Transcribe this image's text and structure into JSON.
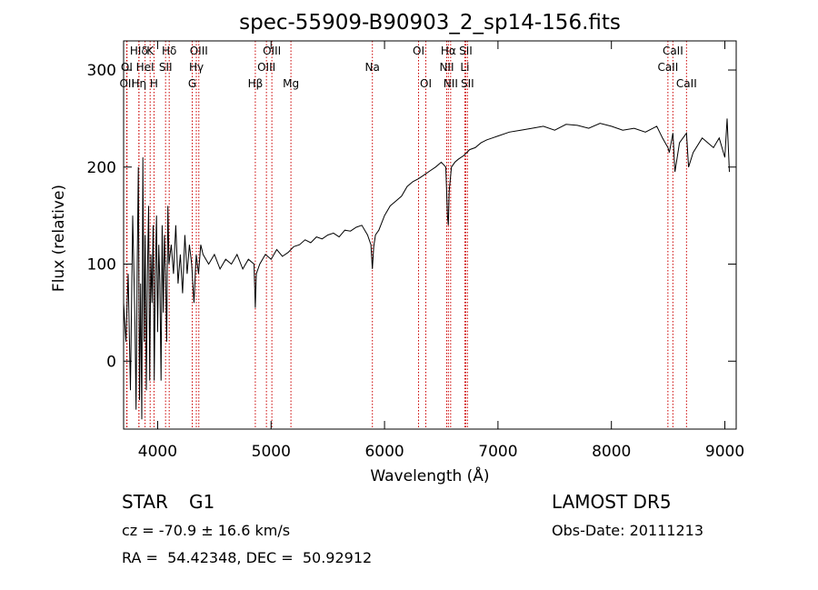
{
  "chart_data": {
    "type": "line",
    "title": "spec-55909-B90903_2_sp14-156.fits",
    "xlabel": "Wavelength (Å)",
    "ylabel": "Flux (relative)",
    "xlim": [
      3700,
      9100
    ],
    "ylim": [
      -70,
      330
    ],
    "x_ticks": [
      4000,
      5000,
      6000,
      7000,
      8000,
      9000
    ],
    "y_ticks": [
      0,
      100,
      200,
      300
    ],
    "grid": false,
    "series": [
      {
        "color": "#000000",
        "x": [
          3700,
          3720,
          3740,
          3760,
          3780,
          3800,
          3810,
          3820,
          3830,
          3840,
          3850,
          3860,
          3870,
          3880,
          3890,
          3900,
          3910,
          3920,
          3930,
          3940,
          3950,
          3960,
          3970,
          3980,
          3990,
          4000,
          4010,
          4020,
          4030,
          4040,
          4050,
          4060,
          4070,
          4080,
          4090,
          4100,
          4120,
          4140,
          4160,
          4180,
          4200,
          4220,
          4240,
          4260,
          4280,
          4300,
          4320,
          4340,
          4360,
          4380,
          4400,
          4450,
          4500,
          4550,
          4600,
          4650,
          4700,
          4750,
          4800,
          4850,
          4861,
          4870,
          4900,
          4950,
          5000,
          5050,
          5100,
          5150,
          5200,
          5250,
          5300,
          5350,
          5400,
          5450,
          5500,
          5550,
          5600,
          5650,
          5700,
          5750,
          5800,
          5850,
          5880,
          5893,
          5905,
          5920,
          5950,
          6000,
          6050,
          6100,
          6150,
          6200,
          6250,
          6300,
          6350,
          6400,
          6450,
          6500,
          6540,
          6555,
          6563,
          6570,
          6590,
          6620,
          6650,
          6700,
          6750,
          6800,
          6850,
          6900,
          6950,
          7000,
          7100,
          7200,
          7300,
          7400,
          7500,
          7600,
          7700,
          7800,
          7900,
          8000,
          8100,
          8200,
          8300,
          8400,
          8450,
          8498,
          8510,
          8542,
          8560,
          8600,
          8662,
          8680,
          8720,
          8800,
          8850,
          8900,
          8950,
          9000,
          9020,
          9040
        ],
        "values": [
          60,
          20,
          90,
          -30,
          150,
          40,
          -50,
          100,
          200,
          -40,
          80,
          -60,
          210,
          20,
          130,
          -30,
          90,
          160,
          -20,
          110,
          60,
          140,
          -20,
          90,
          150,
          30,
          120,
          80,
          -20,
          140,
          50,
          130,
          90,
          20,
          160,
          100,
          120,
          90,
          140,
          80,
          110,
          70,
          130,
          90,
          120,
          100,
          60,
          110,
          90,
          120,
          110,
          100,
          110,
          95,
          105,
          100,
          110,
          95,
          105,
          100,
          55,
          90,
          100,
          110,
          105,
          115,
          108,
          112,
          118,
          120,
          125,
          122,
          128,
          126,
          130,
          132,
          128,
          135,
          134,
          138,
          140,
          130,
          120,
          95,
          118,
          130,
          135,
          150,
          160,
          165,
          170,
          180,
          185,
          188,
          192,
          196,
          200,
          205,
          200,
          150,
          140,
          175,
          200,
          205,
          208,
          212,
          218,
          220,
          225,
          228,
          230,
          232,
          236,
          238,
          240,
          242,
          238,
          244,
          243,
          240,
          245,
          242,
          238,
          240,
          236,
          242,
          230,
          220,
          215,
          235,
          195,
          225,
          235,
          200,
          215,
          230,
          225,
          220,
          230,
          210,
          250,
          195
        ]
      }
    ],
    "line_markers": [
      {
        "label": "HIδ",
        "x": 3835,
        "row": 0
      },
      {
        "label": "K",
        "x": 3934,
        "row": 0
      },
      {
        "label": "Hδ",
        "x": 4102,
        "row": 0
      },
      {
        "label": "OIII",
        "x": 4363,
        "row": 0
      },
      {
        "label": "OIII",
        "x": 5007,
        "row": 0
      },
      {
        "label": "OI",
        "x": 6300,
        "row": 0
      },
      {
        "label": "Hα",
        "x": 6563,
        "row": 0
      },
      {
        "label": "SII",
        "x": 6716,
        "row": 0
      },
      {
        "label": "CaII",
        "x": 8542,
        "row": 0
      },
      {
        "label": "OI",
        "x": 3727,
        "row": 1
      },
      {
        "label": "HeI",
        "x": 3889,
        "row": 1
      },
      {
        "label": "SII",
        "x": 4070,
        "row": 1
      },
      {
        "label": "Hγ",
        "x": 4341,
        "row": 1
      },
      {
        "label": "OIII",
        "x": 4959,
        "row": 1
      },
      {
        "label": "Na",
        "x": 5893,
        "row": 1
      },
      {
        "label": "NII",
        "x": 6548,
        "row": 1
      },
      {
        "label": "Li",
        "x": 6708,
        "row": 1
      },
      {
        "label": "CaII",
        "x": 8498,
        "row": 1
      },
      {
        "label": "OII",
        "x": 3730,
        "row": 2
      },
      {
        "label": "Hη",
        "x": 3835,
        "row": 2
      },
      {
        "label": "H",
        "x": 3968,
        "row": 2
      },
      {
        "label": "G",
        "x": 4305,
        "row": 2
      },
      {
        "label": "Hβ",
        "x": 4861,
        "row": 2
      },
      {
        "label": "Mg",
        "x": 5175,
        "row": 2
      },
      {
        "label": "OI",
        "x": 6364,
        "row": 2
      },
      {
        "label": "NII",
        "x": 6583,
        "row": 2
      },
      {
        "label": "SII",
        "x": 6731,
        "row": 2
      },
      {
        "label": "CaII",
        "x": 8662,
        "row": 2
      }
    ]
  },
  "info": {
    "object_class": "STAR",
    "subclass": "G1",
    "survey": "LAMOST DR5",
    "velocity": "cz = -70.9 ± 16.6 km/s",
    "obs_date": "Obs-Date: 20111213",
    "coords": "RA =  54.42348, DEC =  50.92912"
  }
}
